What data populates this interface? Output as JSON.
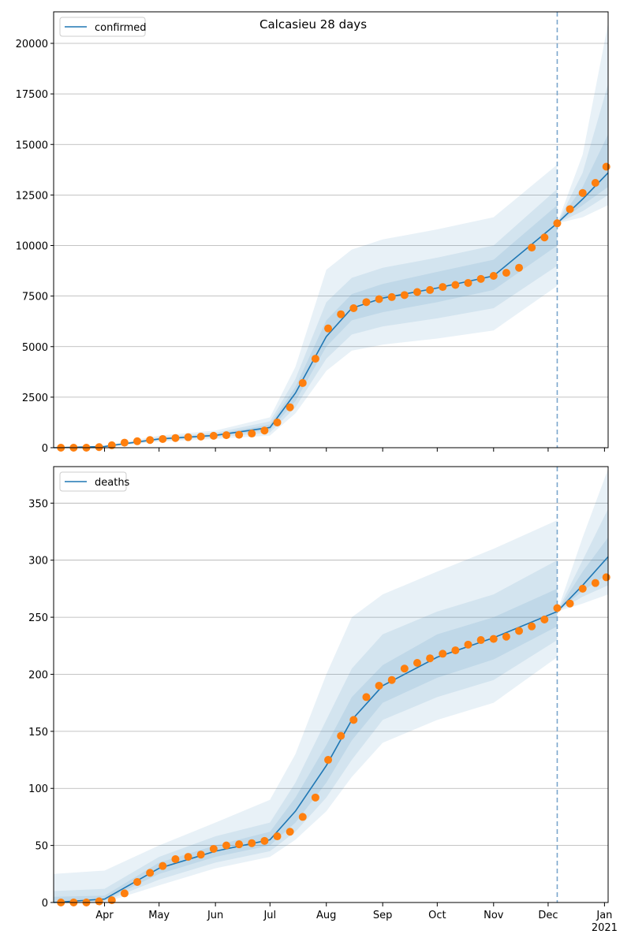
{
  "chart_data": [
    {
      "type": "line",
      "title": "Calcasieu 28 days",
      "legend": "upper left",
      "grid": true,
      "xlim": [
        "2020-03-04",
        "2021-01-03"
      ],
      "xticks": [
        "2020-04-01",
        "2020-05-01",
        "2020-06-01",
        "2020-07-01",
        "2020-08-01",
        "2020-09-01",
        "2020-10-01",
        "2020-11-01",
        "2020-12-01",
        "2021-01-01"
      ],
      "ylim": [
        0,
        21560
      ],
      "yticks": [
        0,
        2500,
        5000,
        7500,
        10000,
        12500,
        15000,
        17500,
        20000
      ],
      "vline": "2020-12-06",
      "vline_color": "#7aa6cc",
      "x": [
        "2020-03-04",
        "2020-04-01",
        "2020-05-01",
        "2020-06-01",
        "2020-07-01",
        "2020-07-15",
        "2020-08-01",
        "2020-08-15",
        "2020-09-01",
        "2020-10-01",
        "2020-11-01",
        "2020-12-06",
        "2020-12-06",
        "2020-12-20",
        "2021-01-03"
      ],
      "bands": [
        {
          "color": "#1f77b4",
          "lo": [
            0,
            30,
            300,
            430,
            600,
            1700,
            3800,
            4800,
            5100,
            5400,
            5800,
            8000,
            11100,
            11400,
            12000
          ],
          "hi": [
            20,
            100,
            600,
            850,
            1500,
            4000,
            8800,
            9800,
            10300,
            10800,
            11400,
            14000,
            11100,
            14500,
            21000
          ]
        },
        {
          "color": "#1f77b4",
          "lo": [
            0,
            40,
            350,
            500,
            750,
            2000,
            4400,
            5600,
            6000,
            6400,
            6900,
            9000,
            11100,
            11700,
            12500
          ],
          "hi": [
            10,
            80,
            520,
            740,
            1300,
            3400,
            7200,
            8400,
            8900,
            9400,
            10000,
            12800,
            11100,
            13600,
            18000
          ]
        },
        {
          "color": "#1f77b4",
          "lo": [
            0,
            50,
            390,
            560,
            870,
            2300,
            5000,
            6300,
            6700,
            7200,
            7800,
            10000,
            11100,
            12000,
            12900
          ],
          "hi": [
            5,
            70,
            470,
            670,
            1150,
            3000,
            6300,
            7600,
            8100,
            8700,
            9300,
            12000,
            11100,
            12900,
            15500
          ]
        }
      ],
      "series": [
        {
          "name": "confirmed",
          "color": "#1f77b4",
          "values": [
            0,
            60,
            430,
            610,
            1000,
            2700,
            5500,
            6900,
            7400,
            7900,
            8500,
            11100,
            11100,
            12300,
            13600
          ]
        }
      ],
      "observed": {
        "color": "#ff7f0e",
        "x": [
          "2020-03-08",
          "2020-03-15",
          "2020-03-22",
          "2020-03-29",
          "2020-04-05",
          "2020-04-12",
          "2020-04-19",
          "2020-04-26",
          "2020-05-03",
          "2020-05-10",
          "2020-05-17",
          "2020-05-24",
          "2020-05-31",
          "2020-06-07",
          "2020-06-14",
          "2020-06-21",
          "2020-06-28",
          "2020-07-05",
          "2020-07-12",
          "2020-07-19",
          "2020-07-26",
          "2020-08-02",
          "2020-08-09",
          "2020-08-16",
          "2020-08-23",
          "2020-08-30",
          "2020-09-06",
          "2020-09-13",
          "2020-09-20",
          "2020-09-27",
          "2020-10-04",
          "2020-10-11",
          "2020-10-18",
          "2020-10-25",
          "2020-11-01",
          "2020-11-08",
          "2020-11-15",
          "2020-11-22",
          "2020-11-29",
          "2020-12-06",
          "2020-12-13",
          "2020-12-20",
          "2020-12-27",
          "2021-01-02"
        ],
        "values": [
          0,
          0,
          0,
          30,
          120,
          250,
          320,
          380,
          430,
          480,
          520,
          550,
          590,
          620,
          640,
          700,
          850,
          1250,
          2000,
          3200,
          4400,
          5900,
          6600,
          6900,
          7200,
          7350,
          7450,
          7550,
          7700,
          7800,
          7950,
          8050,
          8150,
          8350,
          8500,
          8650,
          8900,
          9900,
          10400,
          11100,
          11800,
          12600,
          13100,
          13900
        ]
      }
    },
    {
      "type": "line",
      "legend": "upper left",
      "grid": true,
      "xlim": [
        "2020-03-04",
        "2021-01-03"
      ],
      "xticks": [
        {
          "value": "2020-04-01",
          "label": "Apr"
        },
        {
          "value": "2020-05-01",
          "label": "May"
        },
        {
          "value": "2020-06-01",
          "label": "Jun"
        },
        {
          "value": "2020-07-01",
          "label": "Jul"
        },
        {
          "value": "2020-08-01",
          "label": "Aug"
        },
        {
          "value": "2020-09-01",
          "label": "Sep"
        },
        {
          "value": "2020-10-01",
          "label": "Oct"
        },
        {
          "value": "2020-11-01",
          "label": "Nov"
        },
        {
          "value": "2020-12-01",
          "label": "Dec"
        },
        {
          "value": "2021-01-01",
          "label": "Jan"
        }
      ],
      "x_year_label": "2021",
      "ylim": [
        0,
        382
      ],
      "yticks": [
        0,
        50,
        100,
        150,
        200,
        250,
        300,
        350
      ],
      "vline": "2020-12-06",
      "vline_color": "#7aa6cc",
      "x": [
        "2020-03-04",
        "2020-04-01",
        "2020-05-01",
        "2020-06-01",
        "2020-07-01",
        "2020-07-15",
        "2020-08-01",
        "2020-08-15",
        "2020-09-01",
        "2020-10-01",
        "2020-11-01",
        "2020-12-06",
        "2020-12-06",
        "2020-12-20",
        "2021-01-03"
      ],
      "bands": [
        {
          "color": "#1f77b4",
          "lo": [
            0,
            0,
            15,
            30,
            40,
            55,
            80,
            110,
            140,
            160,
            175,
            215,
            255,
            262,
            270
          ],
          "hi": [
            25,
            28,
            50,
            70,
            90,
            130,
            200,
            250,
            270,
            290,
            310,
            335,
            255,
            320,
            380
          ]
        },
        {
          "color": "#1f77b4",
          "lo": [
            0,
            1,
            20,
            35,
            45,
            62,
            92,
            125,
            160,
            180,
            195,
            230,
            255,
            268,
            278
          ],
          "hi": [
            10,
            12,
            40,
            58,
            70,
            105,
            160,
            205,
            235,
            255,
            270,
            300,
            255,
            300,
            345
          ]
        },
        {
          "color": "#1f77b4",
          "lo": [
            0,
            2,
            25,
            40,
            50,
            70,
            105,
            142,
            175,
            197,
            213,
            242,
            255,
            273,
            288
          ],
          "hi": [
            5,
            6,
            35,
            50,
            62,
            92,
            138,
            180,
            208,
            235,
            250,
            275,
            255,
            290,
            320
          ]
        }
      ],
      "series": [
        {
          "name": "deaths",
          "color": "#1f77b4",
          "values": [
            0,
            3,
            30,
            45,
            55,
            80,
            120,
            160,
            190,
            215,
            232,
            255,
            255,
            278,
            303
          ]
        }
      ],
      "observed": {
        "color": "#ff7f0e",
        "x": [
          "2020-03-08",
          "2020-03-15",
          "2020-03-22",
          "2020-03-29",
          "2020-04-05",
          "2020-04-12",
          "2020-04-19",
          "2020-04-26",
          "2020-05-03",
          "2020-05-10",
          "2020-05-17",
          "2020-05-24",
          "2020-05-31",
          "2020-06-07",
          "2020-06-14",
          "2020-06-21",
          "2020-06-28",
          "2020-07-05",
          "2020-07-12",
          "2020-07-19",
          "2020-07-26",
          "2020-08-02",
          "2020-08-09",
          "2020-08-16",
          "2020-08-23",
          "2020-08-30",
          "2020-09-06",
          "2020-09-13",
          "2020-09-20",
          "2020-09-27",
          "2020-10-04",
          "2020-10-11",
          "2020-10-18",
          "2020-10-25",
          "2020-11-01",
          "2020-11-08",
          "2020-11-15",
          "2020-11-22",
          "2020-11-29",
          "2020-12-06",
          "2020-12-13",
          "2020-12-20",
          "2020-12-27",
          "2021-01-02"
        ],
        "values": [
          0,
          0,
          0,
          1,
          2,
          8,
          18,
          26,
          32,
          38,
          40,
          42,
          47,
          50,
          51,
          52,
          54,
          58,
          62,
          75,
          92,
          125,
          146,
          160,
          180,
          190,
          195,
          205,
          210,
          214,
          218,
          221,
          226,
          230,
          231,
          233,
          238,
          242,
          248,
          258,
          262,
          275,
          280,
          285
        ]
      }
    }
  ]
}
